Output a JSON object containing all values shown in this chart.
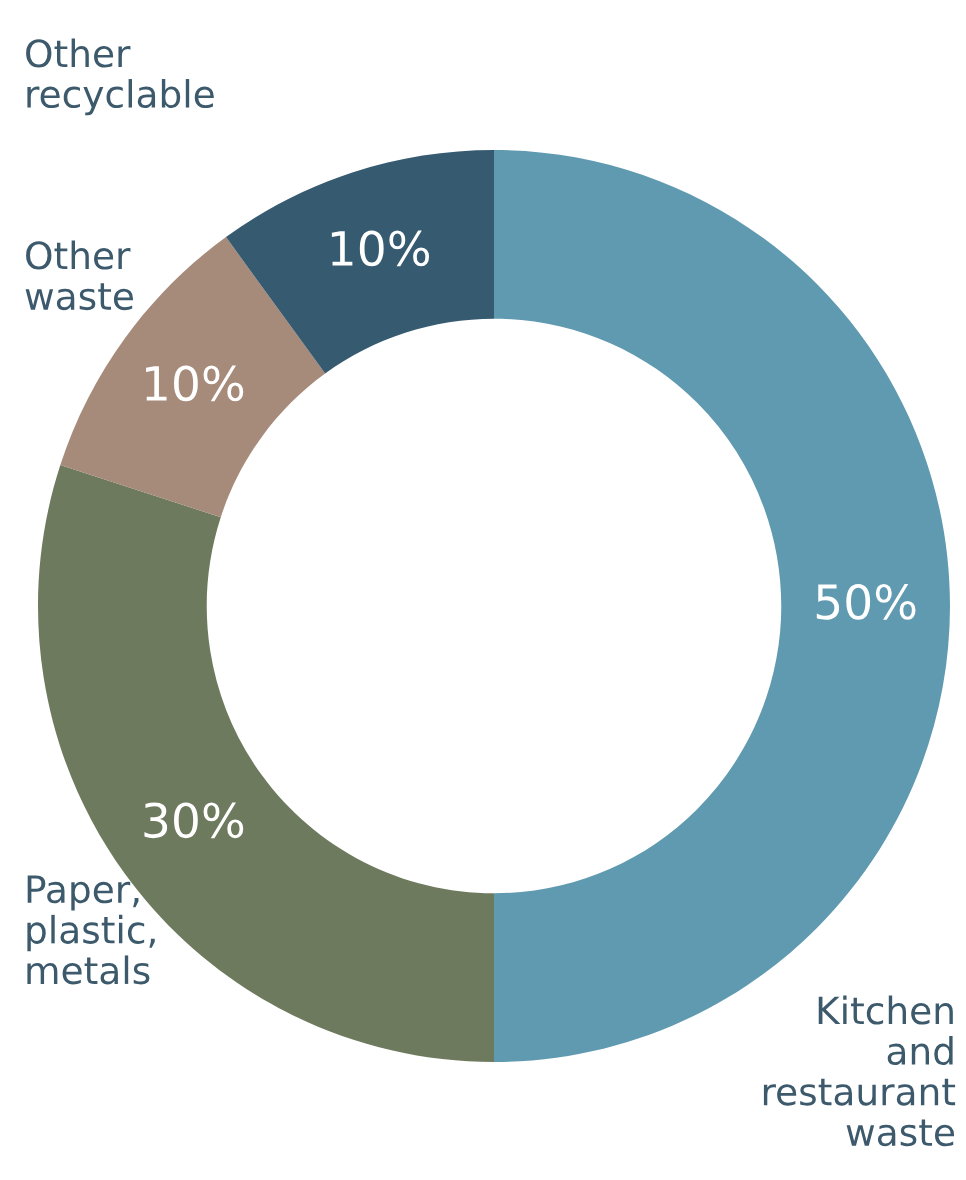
{
  "chart_data": {
    "type": "donut",
    "categories": [
      "Kitchen\nand\nrestaurant\nwaste",
      "Paper,\nplastic,\nmetals",
      "Other\nwaste",
      "Other\nrecyclable"
    ],
    "values": [
      50,
      30,
      10,
      10
    ],
    "colors": [
      "#5f9ab0",
      "#6e7a5e",
      "#a68a7a",
      "#365b70"
    ],
    "value_labels": [
      "50%",
      "30%",
      "10%",
      "10%"
    ],
    "legend": false
  }
}
